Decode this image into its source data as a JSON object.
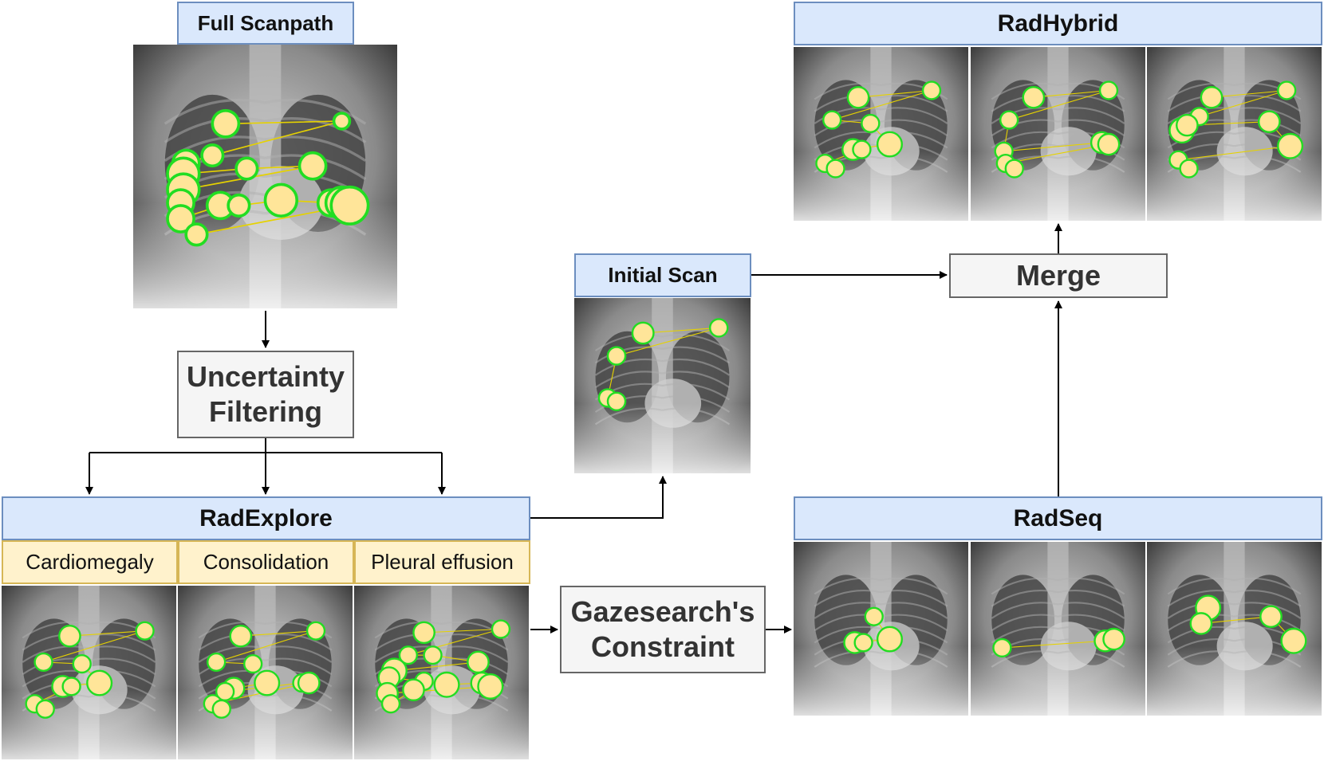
{
  "full_scanpath": {
    "title": "Full Scanpath"
  },
  "uncertainty": {
    "text": "Uncertainty Filtering"
  },
  "radexplore": {
    "title": "RadExplore",
    "labels": [
      "Cardiomegaly",
      "Consolidation",
      "Pleural effusion"
    ]
  },
  "initial_scan": {
    "title": "Initial Scan"
  },
  "gazesearch": {
    "text": "Gazesearch's Constraint"
  },
  "radseq": {
    "title": "RadSeq"
  },
  "merge": {
    "text": "Merge"
  },
  "radhybrid": {
    "title": "RadHybrid"
  },
  "colors": {
    "header_fill": "#dae8fc",
    "header_border": "#6c8ebf",
    "label_fill": "#fff2cc",
    "fixation_fill": "#ffe599",
    "fixation_stroke": "#22dd22",
    "saccade": "#e6d200"
  }
}
